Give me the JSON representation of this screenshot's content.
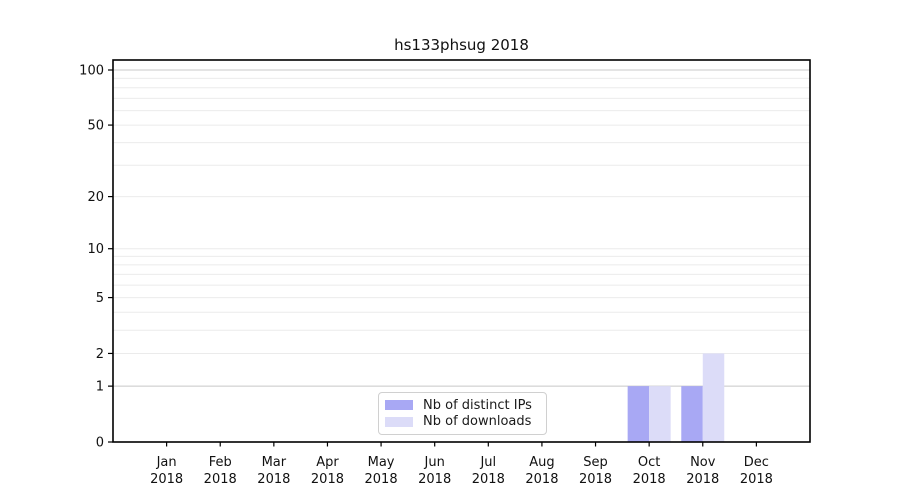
{
  "title": "hs133phsug 2018",
  "chart_data": {
    "type": "bar",
    "title": "hs133phsug 2018",
    "categories": [
      "Jan 2018",
      "Feb 2018",
      "Mar 2018",
      "Apr 2018",
      "May 2018",
      "Jun 2018",
      "Jul 2018",
      "Aug 2018",
      "Sep 2018",
      "Oct 2018",
      "Nov 2018",
      "Dec 2018"
    ],
    "series": [
      {
        "name": "Nb of distinct IPs",
        "color": "#a8a8f4",
        "values": [
          0,
          0,
          0,
          0,
          0,
          0,
          0,
          0,
          0,
          1,
          1,
          0
        ]
      },
      {
        "name": "Nb of downloads",
        "color": "#dcdcf8",
        "values": [
          0,
          0,
          0,
          0,
          0,
          0,
          0,
          0,
          0,
          1,
          2,
          0
        ]
      }
    ],
    "yticks": [
      0,
      1,
      2,
      5,
      10,
      20,
      50,
      100
    ],
    "minor_gridline_values": [
      3,
      4,
      6,
      7,
      8,
      9,
      30,
      40,
      60,
      70,
      80,
      90
    ],
    "yscale": "log1p",
    "ylim": [
      0,
      113
    ],
    "xlabel": "",
    "ylabel": "",
    "grid": true,
    "legend_position": "lower center",
    "colors": {
      "major_grid": "#c8c8c8",
      "minor_grid": "#ebebeb",
      "spine": "#000000",
      "tick_text": "#111111"
    }
  }
}
